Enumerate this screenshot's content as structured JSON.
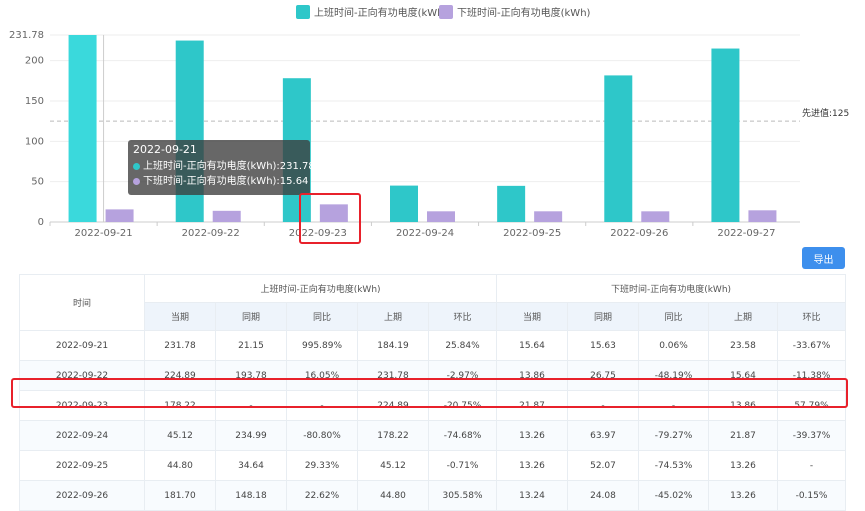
{
  "chart_data": {
    "type": "bar",
    "categories": [
      "2022-09-21",
      "2022-09-22",
      "2022-09-23",
      "2022-09-24",
      "2022-09-25",
      "2022-09-26",
      "2022-09-27"
    ],
    "series": [
      {
        "name": "上班时间-正向有功电度(kWh)",
        "values": [
          231.78,
          224.89,
          178.22,
          45.12,
          44.8,
          181.7,
          215.0
        ],
        "color": "#2ec7c9"
      },
      {
        "name": "下班时间-正向有功电度(kWh)",
        "values": [
          15.64,
          13.86,
          21.87,
          13.26,
          13.26,
          13.24,
          14.5
        ],
        "color": "#b6a2de"
      }
    ],
    "yticks": [
      "0",
      "50",
      "100",
      "150",
      "200",
      "231.78"
    ],
    "ylim": [
      0,
      231.78
    ],
    "reference_line": {
      "label": "先进值:125",
      "value": 125
    },
    "highlighted_category": "2022-09-21",
    "grid": true,
    "legend_position": "top-center"
  },
  "tooltip": {
    "date": "2022-09-21",
    "line1": "上班时间-正向有功电度(kWh):231.78",
    "line2": "下班时间-正向有功电度(kWh):15.64",
    "color1": "#2ec7c9",
    "color2": "#b6a2de"
  },
  "toolbar": {
    "export_label": "导出"
  },
  "table": {
    "time_header": "时间",
    "group1": "上班时间-正向有功电度(kWh)",
    "group2": "下班时间-正向有功电度(kWh)",
    "subheaders": [
      "当期",
      "同期",
      "同比",
      "上期",
      "环比"
    ],
    "rows": [
      [
        "2022-09-21",
        "231.78",
        "21.15",
        "995.89%",
        "184.19",
        "25.84%",
        "15.64",
        "15.63",
        "0.06%",
        "23.58",
        "-33.67%"
      ],
      [
        "2022-09-22",
        "224.89",
        "193.78",
        "16.05%",
        "231.78",
        "-2.97%",
        "13.86",
        "26.75",
        "-48.19%",
        "15.64",
        "-11.38%"
      ],
      [
        "2022-09-23",
        "178.22",
        "-",
        "-",
        "224.89",
        "-20.75%",
        "21.87",
        "-",
        "-",
        "13.86",
        "57.79%"
      ],
      [
        "2022-09-24",
        "45.12",
        "234.99",
        "-80.80%",
        "178.22",
        "-74.68%",
        "13.26",
        "63.97",
        "-79.27%",
        "21.87",
        "-39.37%"
      ],
      [
        "2022-09-25",
        "44.80",
        "34.64",
        "29.33%",
        "45.12",
        "-0.71%",
        "13.26",
        "52.07",
        "-74.53%",
        "13.26",
        "-"
      ],
      [
        "2022-09-26",
        "181.70",
        "148.18",
        "22.62%",
        "44.80",
        "305.58%",
        "13.24",
        "24.08",
        "-45.02%",
        "13.26",
        "-0.15%"
      ]
    ]
  },
  "colors": {
    "accent_blue": "#3d8fed",
    "highlight_red": "#e8212b",
    "negative_green": "#19a05b",
    "positive_red": "#e5323b"
  }
}
